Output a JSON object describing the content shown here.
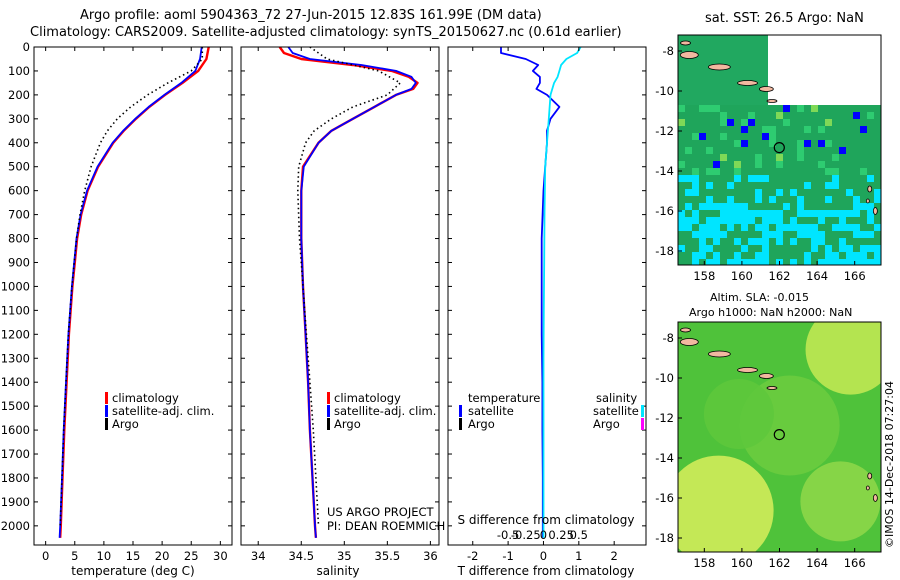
{
  "header": {
    "title_line1": "Argo profile: aoml 5904363_72 27-Jun-2015 12.83S 161.99E (DM data)",
    "title_line2": "Climatology: CARS2009. Satellite-adjusted climatology: synTS_20150627.nc (0.61d earlier)"
  },
  "colors": {
    "climatology": "#ff0000",
    "satellite": "#0000ff",
    "argo": "#000000",
    "sat_salinity_diff": "#00e5ff",
    "argo_salinity_diff": "#ff00ff"
  },
  "legend": {
    "climatology": "climatology",
    "satellite": "satellite-adj. clim.",
    "argo": "Argo",
    "diff_temperature": "temperature",
    "diff_salinity": "salinity",
    "diff_satellite": "satellite",
    "diff_argo": "Argo"
  },
  "credits": {
    "project": "US ARGO PROJECT",
    "pi": "PI: DEAN ROEMMICH"
  },
  "maps": {
    "sst_title": "sat. SST: 26.5 Argo: NaN",
    "sla_title1": "Altim. SLA: -0.015",
    "sla_title2": "Argo h1000: NaN h2000: NaN",
    "lon_ticks": [
      "158",
      "160",
      "162",
      "164",
      "166"
    ],
    "lat_ticks": [
      "-8",
      "-10",
      "-12",
      "-14",
      "-16",
      "-18"
    ],
    "float_position": {
      "lon": 161.99,
      "lat": -12.83
    },
    "watermark": "©IMOS 14-Dec-2018 07:27:04"
  },
  "chart_data": [
    {
      "type": "line",
      "panel": "temperature",
      "xlabel": "temperature (deg C)",
      "ylabel": "",
      "xlim": [
        -2,
        32
      ],
      "ylim": [
        2080,
        0
      ],
      "x_ticks": [
        0,
        5,
        10,
        15,
        20,
        25,
        30
      ],
      "y_ticks": [
        0,
        100,
        200,
        300,
        400,
        500,
        600,
        700,
        800,
        900,
        1000,
        1100,
        1200,
        1300,
        1400,
        1500,
        1600,
        1700,
        1800,
        1900,
        2000
      ],
      "series": [
        {
          "name": "climatology",
          "depth": [
            0,
            50,
            100,
            150,
            200,
            250,
            300,
            350,
            400,
            500,
            600,
            700,
            800,
            900,
            1000,
            1200,
            1400,
            1600,
            1800,
            2000,
            2050
          ],
          "values": [
            28.0,
            27.6,
            26.2,
            23.5,
            20.5,
            17.8,
            15.5,
            13.4,
            11.6,
            9.0,
            7.2,
            6.1,
            5.4,
            5.0,
            4.6,
            4.0,
            3.6,
            3.2,
            2.9,
            2.6,
            2.5
          ]
        },
        {
          "name": "satellite-adj. clim.",
          "depth": [
            0,
            50,
            100,
            150,
            200,
            250,
            300,
            350,
            400,
            500,
            600,
            700,
            800,
            900,
            1000,
            1200,
            1400,
            1600,
            1800,
            2000,
            2050
          ],
          "values": [
            26.8,
            26.5,
            25.7,
            23.3,
            20.4,
            17.7,
            15.4,
            13.3,
            11.5,
            8.9,
            7.1,
            6.0,
            5.3,
            4.9,
            4.5,
            3.9,
            3.5,
            3.1,
            2.8,
            2.5,
            2.4
          ]
        },
        {
          "name": "Argo",
          "depth": [
            0,
            50,
            100,
            150,
            200,
            250,
            300,
            350,
            400,
            500,
            600,
            700,
            800,
            900,
            1000,
            1200,
            1400,
            1600,
            1800,
            2000
          ],
          "values": [
            26.9,
            26.9,
            25.0,
            21.0,
            17.5,
            14.6,
            12.3,
            10.6,
            9.4,
            7.8,
            6.7,
            5.9,
            5.3,
            4.9,
            4.5,
            3.9,
            3.5,
            3.1,
            2.8,
            2.5
          ]
        }
      ]
    },
    {
      "type": "line",
      "panel": "salinity",
      "xlabel": "salinity",
      "ylabel": "",
      "xlim": [
        33.8,
        36.1
      ],
      "ylim": [
        2080,
        0
      ],
      "x_ticks": [
        34,
        34.5,
        35,
        35.5,
        36
      ],
      "series": [
        {
          "name": "climatology",
          "depth": [
            0,
            25,
            50,
            75,
            100,
            125,
            150,
            175,
            200,
            250,
            300,
            350,
            400,
            500,
            600,
            800,
            1000,
            1200,
            1400,
            1600,
            1800,
            2000,
            2050
          ],
          "values": [
            34.25,
            34.3,
            34.5,
            35.1,
            35.55,
            35.75,
            35.85,
            35.8,
            35.6,
            35.35,
            35.1,
            34.85,
            34.7,
            34.52,
            34.5,
            34.5,
            34.52,
            34.55,
            34.58,
            34.6,
            34.63,
            34.66,
            34.67
          ]
        },
        {
          "name": "satellite-adj. clim.",
          "depth": [
            0,
            25,
            50,
            75,
            100,
            125,
            150,
            175,
            200,
            250,
            300,
            350,
            400,
            500,
            600,
            800,
            1000,
            1200,
            1400,
            1600,
            1800,
            2000,
            2050
          ],
          "values": [
            34.35,
            34.4,
            34.6,
            35.2,
            35.6,
            35.78,
            35.83,
            35.78,
            35.6,
            35.35,
            35.1,
            34.85,
            34.7,
            34.53,
            34.5,
            34.5,
            34.52,
            34.55,
            34.58,
            34.6,
            34.63,
            34.66,
            34.67
          ]
        },
        {
          "name": "Argo",
          "depth": [
            0,
            50,
            100,
            150,
            200,
            250,
            300,
            350,
            400,
            500,
            600,
            800,
            1000,
            1200,
            1400,
            1600,
            1800,
            2000
          ],
          "values": [
            34.6,
            34.8,
            35.4,
            35.65,
            35.5,
            35.1,
            34.85,
            34.65,
            34.55,
            34.47,
            34.46,
            34.48,
            34.52,
            34.56,
            34.6,
            34.64,
            34.67,
            34.7
          ]
        }
      ]
    },
    {
      "type": "line",
      "panel": "difference",
      "xlabel": "T difference from climatology",
      "xlabel_top": "S difference from climatology",
      "xlim": [
        -2.7,
        2.9
      ],
      "ylim": [
        2080,
        0
      ],
      "x_ticks": [
        -2,
        -1,
        0,
        1,
        2
      ],
      "x_ticks_top": [
        "-0.5",
        "-0.25",
        "0",
        "0.25",
        "0.5"
      ],
      "series": [
        {
          "name": "temperature satellite",
          "depth": [
            0,
            25,
            50,
            75,
            100,
            125,
            150,
            175,
            200,
            250,
            300,
            350,
            400,
            500,
            600,
            800,
            1000,
            1200,
            1400,
            1600,
            1800,
            2000,
            2050
          ],
          "values": [
            -1.2,
            -1.2,
            -0.5,
            -0.15,
            -0.3,
            -0.1,
            -0.1,
            -0.2,
            0.1,
            0.45,
            0.2,
            0.1,
            0.1,
            0.05,
            0.0,
            -0.05,
            -0.05,
            -0.05,
            -0.03,
            -0.03,
            -0.02,
            -0.02,
            -0.02
          ]
        },
        {
          "name": "salinity satellite",
          "depth": [
            0,
            25,
            50,
            75,
            100,
            125,
            150,
            200,
            300,
            400,
            500,
            700,
            900,
            1100,
            1300,
            1500,
            1700,
            1900,
            2050
          ],
          "values": [
            1.05,
            0.95,
            0.65,
            0.5,
            0.45,
            0.4,
            0.3,
            0.2,
            0.15,
            0.1,
            0.05,
            0.03,
            0.02,
            0.01,
            0.0,
            0.0,
            0.0,
            0.0,
            0.0
          ]
        }
      ]
    }
  ]
}
